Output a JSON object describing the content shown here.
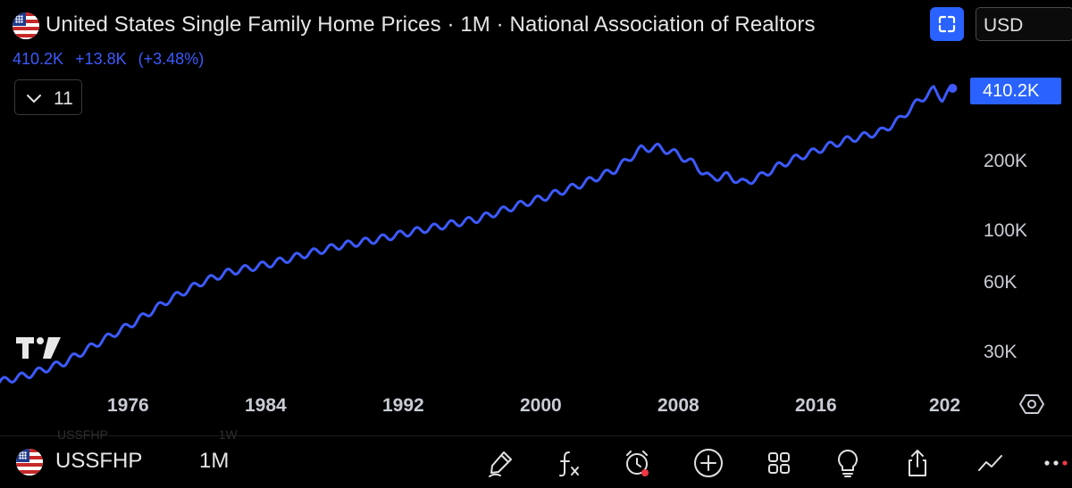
{
  "header": {
    "title": "United States Single Family Home Prices · 1M · National Association of Realtors",
    "last_value": "410.2K",
    "change_abs": "+13.8K",
    "change_pct": "(+3.48%)",
    "currency": "USD",
    "flag_icon": "us-flag-icon"
  },
  "indicators": {
    "collapsed_count": "11"
  },
  "chart": {
    "last_price_label": "410.2K",
    "line_color": "#3d5afe",
    "accent_color": "#2962ff",
    "background": "#000000",
    "scale": "log"
  },
  "chart_data": {
    "type": "line",
    "title": "United States Single Family Home Prices · 1M · National Association of Realtors",
    "xlabel": "",
    "ylabel": "",
    "y_scale": "log",
    "x_ticks": [
      "1976",
      "1984",
      "1992",
      "2000",
      "2008",
      "2016",
      "202"
    ],
    "y_ticks": [
      "30K",
      "60K",
      "100K",
      "200K"
    ],
    "last_value_label": "410.2K",
    "series": [
      {
        "values": [
          {
            "x": 1968.0,
            "y": 22000
          },
          {
            "x": 1970.0,
            "y": 24000
          },
          {
            "x": 1972.0,
            "y": 27000
          },
          {
            "x": 1974.0,
            "y": 33000
          },
          {
            "x": 1976.0,
            "y": 40000
          },
          {
            "x": 1978.0,
            "y": 50000
          },
          {
            "x": 1980.0,
            "y": 60000
          },
          {
            "x": 1981.5,
            "y": 66000
          },
          {
            "x": 1984.0,
            "y": 72000
          },
          {
            "x": 1986.0,
            "y": 79000
          },
          {
            "x": 1988.0,
            "y": 86000
          },
          {
            "x": 1990.0,
            "y": 91000
          },
          {
            "x": 1992.0,
            "y": 98000
          },
          {
            "x": 1994.0,
            "y": 105000
          },
          {
            "x": 1996.0,
            "y": 112000
          },
          {
            "x": 1998.0,
            "y": 126000
          },
          {
            "x": 2000.0,
            "y": 140000
          },
          {
            "x": 2002.0,
            "y": 158000
          },
          {
            "x": 2004.0,
            "y": 183000
          },
          {
            "x": 2005.5,
            "y": 225000
          },
          {
            "x": 2006.5,
            "y": 228000
          },
          {
            "x": 2007.5,
            "y": 215000
          },
          {
            "x": 2008.5,
            "y": 195000
          },
          {
            "x": 2009.5,
            "y": 168000
          },
          {
            "x": 2010.5,
            "y": 172000
          },
          {
            "x": 2011.5,
            "y": 160000
          },
          {
            "x": 2012.5,
            "y": 172000
          },
          {
            "x": 2013.5,
            "y": 190000
          },
          {
            "x": 2014.5,
            "y": 205000
          },
          {
            "x": 2015.5,
            "y": 218000
          },
          {
            "x": 2016.5,
            "y": 233000
          },
          {
            "x": 2017.5,
            "y": 246000
          },
          {
            "x": 2018.5,
            "y": 256000
          },
          {
            "x": 2019.5,
            "y": 268000
          },
          {
            "x": 2020.5,
            "y": 300000
          },
          {
            "x": 2021.5,
            "y": 355000
          },
          {
            "x": 2022.5,
            "y": 405000
          },
          {
            "x": 2023.0,
            "y": 372000
          },
          {
            "x": 2023.6,
            "y": 410200
          }
        ]
      }
    ]
  },
  "bottom_bar": {
    "symbol": "USSFHP",
    "interval": "1M",
    "ghost_symbol": "USSFHP",
    "ghost_interval": "1W",
    "tools": [
      "draw-brush-icon",
      "indicators-fx-icon",
      "alert-clock-icon",
      "add-plus-icon",
      "layout-grid-icon",
      "ideas-lightbulb-icon",
      "share-icon",
      "chart-style-line-icon",
      "more-icon"
    ]
  }
}
